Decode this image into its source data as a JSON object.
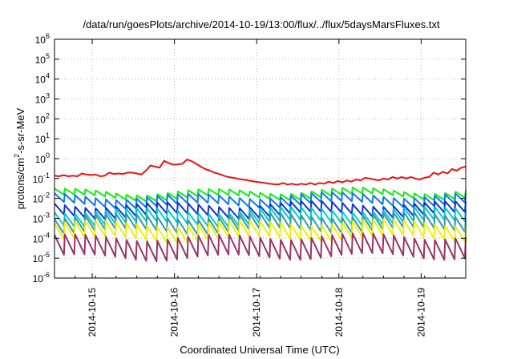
{
  "chart_data": {
    "type": "line",
    "title": "/data/run/goesPlots/archive/2014-10-19/13:00/flux/../flux/5daysMarsFluxes.txt",
    "xlabel": "Coordinated Universal Time (UTC)",
    "ylabel": {
      "base": "protons/cm",
      "sup": "2",
      "rest": "-s-sr-MeV"
    },
    "y_scale": "log",
    "ylim": [
      1e-06,
      1000000.0
    ],
    "y_ticks": [
      {
        "value": 1e-06,
        "base": "10",
        "exp": "-6"
      },
      {
        "value": 1e-05,
        "base": "10",
        "exp": "-5"
      },
      {
        "value": 0.0001,
        "base": "10",
        "exp": "-4"
      },
      {
        "value": 0.001,
        "base": "10",
        "exp": "-3"
      },
      {
        "value": 0.01,
        "base": "10",
        "exp": "-2"
      },
      {
        "value": 0.1,
        "base": "10",
        "exp": "-1"
      },
      {
        "value": 1,
        "base": "10",
        "exp": "0"
      },
      {
        "value": 10.0,
        "base": "10",
        "exp": "1"
      },
      {
        "value": 100.0,
        "base": "10",
        "exp": "2"
      },
      {
        "value": 1000.0,
        "base": "10",
        "exp": "3"
      },
      {
        "value": 10000.0,
        "base": "10",
        "exp": "4"
      },
      {
        "value": 100000.0,
        "base": "10",
        "exp": "5"
      },
      {
        "value": 1000000.0,
        "base": "10",
        "exp": "6"
      }
    ],
    "xlim": [
      "2014-10-14T13:00",
      "2014-10-19T13:00"
    ],
    "x_ticks": [
      "2014-10-15",
      "2014-10-16",
      "2014-10-17",
      "2014-10-18",
      "2014-10-19"
    ],
    "grid": true,
    "legend": "none",
    "series": [
      {
        "color": "#ee1111",
        "points": [
          [
            "2014-10-14T13:00",
            0.14
          ],
          [
            "2014-10-14T14:20",
            0.13
          ],
          [
            "2014-10-14T15:40",
            0.15
          ],
          [
            "2014-10-14T17:00",
            0.13
          ],
          [
            "2014-10-14T18:20",
            0.14
          ],
          [
            "2014-10-14T19:40",
            0.13
          ],
          [
            "2014-10-14T21:00",
            0.18
          ],
          [
            "2014-10-14T22:20",
            0.16
          ],
          [
            "2014-10-14T23:40",
            0.15
          ],
          [
            "2014-10-15T01:00",
            0.16
          ],
          [
            "2014-10-15T02:20",
            0.13
          ],
          [
            "2014-10-15T03:40",
            0.14
          ],
          [
            "2014-10-15T05:00",
            0.2
          ],
          [
            "2014-10-15T06:20",
            0.17
          ],
          [
            "2014-10-15T07:40",
            0.18
          ],
          [
            "2014-10-15T09:00",
            0.17
          ],
          [
            "2014-10-15T10:20",
            0.2
          ],
          [
            "2014-10-15T11:40",
            0.2
          ],
          [
            "2014-10-15T13:00",
            0.18
          ],
          [
            "2014-10-15T14:20",
            0.16
          ],
          [
            "2014-10-15T15:40",
            0.25
          ],
          [
            "2014-10-15T17:00",
            0.45
          ],
          [
            "2014-10-15T18:20",
            0.4
          ],
          [
            "2014-10-15T19:40",
            0.35
          ],
          [
            "2014-10-15T21:00",
            0.78
          ],
          [
            "2014-10-15T22:20",
            0.6
          ],
          [
            "2014-10-15T23:40",
            0.5
          ],
          [
            "2014-10-16T01:00",
            0.52
          ],
          [
            "2014-10-16T02:20",
            0.55
          ],
          [
            "2014-10-16T03:40",
            0.9
          ],
          [
            "2014-10-16T05:00",
            0.75
          ],
          [
            "2014-10-16T06:20",
            0.55
          ],
          [
            "2014-10-16T07:40",
            0.4
          ],
          [
            "2014-10-16T09:00",
            0.3
          ],
          [
            "2014-10-16T10:20",
            0.25
          ],
          [
            "2014-10-16T11:40",
            0.2
          ],
          [
            "2014-10-16T13:00",
            0.17
          ],
          [
            "2014-10-16T14:20",
            0.14
          ],
          [
            "2014-10-16T15:40",
            0.12
          ],
          [
            "2014-10-16T17:00",
            0.11
          ],
          [
            "2014-10-16T18:20",
            0.1
          ],
          [
            "2014-10-16T19:40",
            0.09
          ],
          [
            "2014-10-16T21:00",
            0.085
          ],
          [
            "2014-10-16T22:20",
            0.075
          ],
          [
            "2014-10-16T23:40",
            0.07
          ],
          [
            "2014-10-17T01:00",
            0.065
          ],
          [
            "2014-10-17T02:20",
            0.06
          ],
          [
            "2014-10-17T03:40",
            0.055
          ],
          [
            "2014-10-17T05:00",
            0.052
          ],
          [
            "2014-10-17T06:20",
            0.05
          ],
          [
            "2014-10-17T07:40",
            0.06
          ],
          [
            "2014-10-17T09:00",
            0.05
          ],
          [
            "2014-10-17T10:20",
            0.055
          ],
          [
            "2014-10-17T11:40",
            0.048
          ],
          [
            "2014-10-17T13:00",
            0.055
          ],
          [
            "2014-10-17T14:20",
            0.05
          ],
          [
            "2014-10-17T15:40",
            0.06
          ],
          [
            "2014-10-17T17:00",
            0.05
          ],
          [
            "2014-10-17T18:20",
            0.06
          ],
          [
            "2014-10-17T19:40",
            0.055
          ],
          [
            "2014-10-17T21:00",
            0.07
          ],
          [
            "2014-10-17T22:20",
            0.06
          ],
          [
            "2014-10-17T23:40",
            0.075
          ],
          [
            "2014-10-18T01:00",
            0.065
          ],
          [
            "2014-10-18T02:20",
            0.08
          ],
          [
            "2014-10-18T03:40",
            0.07
          ],
          [
            "2014-10-18T05:00",
            0.09
          ],
          [
            "2014-10-18T06:20",
            0.08
          ],
          [
            "2014-10-18T07:40",
            0.11
          ],
          [
            "2014-10-18T09:00",
            0.1
          ],
          [
            "2014-10-18T10:20",
            0.09
          ],
          [
            "2014-10-18T11:40",
            0.08
          ],
          [
            "2014-10-18T13:00",
            0.1
          ],
          [
            "2014-10-18T14:20",
            0.09
          ],
          [
            "2014-10-18T15:40",
            0.12
          ],
          [
            "2014-10-18T17:00",
            0.1
          ],
          [
            "2014-10-18T18:20",
            0.12
          ],
          [
            "2014-10-18T19:40",
            0.1
          ],
          [
            "2014-10-18T21:00",
            0.12
          ],
          [
            "2014-10-18T22:20",
            0.1
          ],
          [
            "2014-10-18T23:40",
            0.09
          ],
          [
            "2014-10-19T01:00",
            0.11
          ],
          [
            "2014-10-19T02:20",
            0.12
          ],
          [
            "2014-10-19T03:40",
            0.2
          ],
          [
            "2014-10-19T05:00",
            0.16
          ],
          [
            "2014-10-19T06:20",
            0.22
          ],
          [
            "2014-10-19T07:40",
            0.18
          ],
          [
            "2014-10-19T09:00",
            0.3
          ],
          [
            "2014-10-19T10:20",
            0.25
          ],
          [
            "2014-10-19T11:40",
            0.35
          ],
          [
            "2014-10-19T13:00",
            0.4
          ]
        ]
      },
      {
        "color": "#11ee11",
        "base": 0.012,
        "ratio": 2.0,
        "drift": 0.9
      },
      {
        "color": "#1177ee",
        "base": 0.005,
        "ratio": 2.8,
        "drift": 0.9
      },
      {
        "color": "#1133cc",
        "base": 0.0015,
        "ratio": 3.5,
        "drift": 0.9
      },
      {
        "color": "#00cccc",
        "base": 0.0006,
        "ratio": 4.5,
        "drift": 0.9
      },
      {
        "color": "#3399aa",
        "base": 0.00025,
        "ratio": 5.5,
        "drift": 0.9
      },
      {
        "color": "#eeee11",
        "base": 0.0001,
        "ratio": 6.0,
        "drift": 0.9
      },
      {
        "color": "#993366",
        "base": 1.2e-05,
        "ratio": 10.0,
        "drift": 0.9
      }
    ]
  }
}
